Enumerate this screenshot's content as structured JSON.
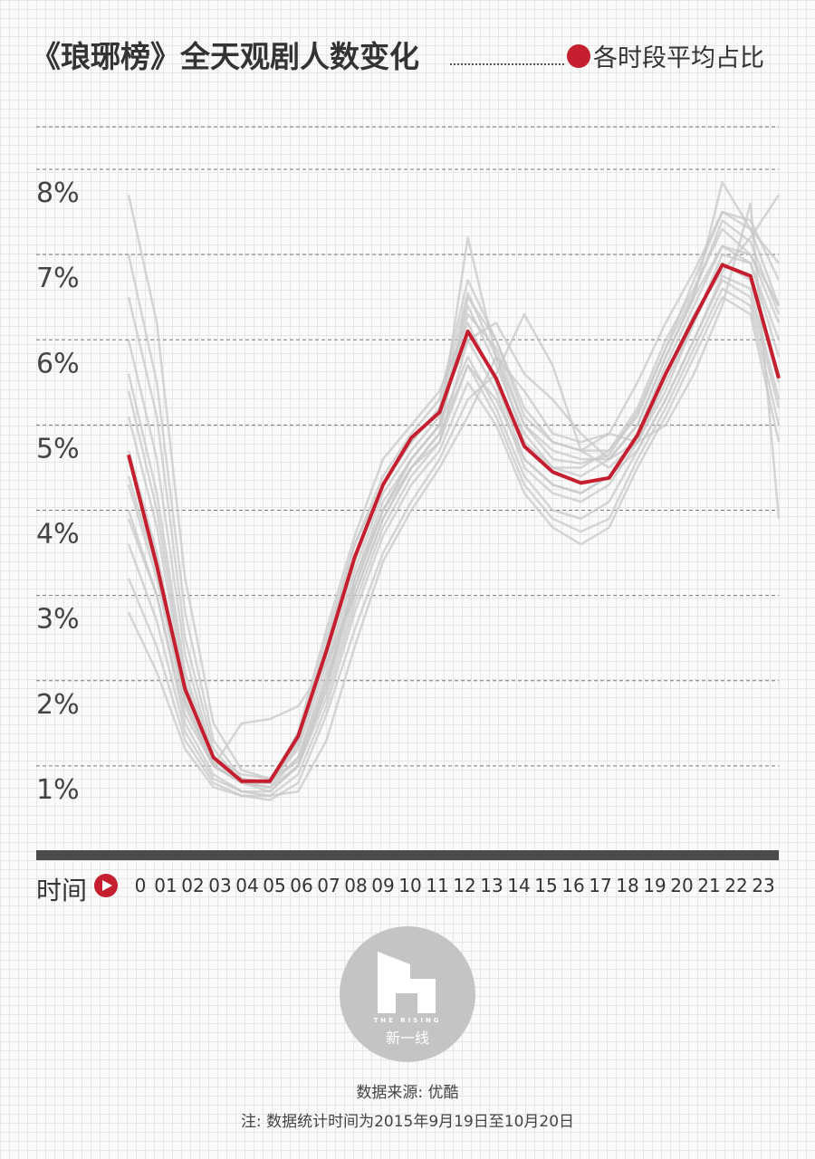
{
  "title": "《琅琊榜》全天观剧人数变化",
  "legend": {
    "label": "各时段平均占比",
    "color": "#c41e2f"
  },
  "axis_title": "时间",
  "logo": {
    "text_en": "THE RISING",
    "text_cn": "新一线"
  },
  "source": "数据来源: 优酷",
  "note": "注: 数据统计时间为2015年9月19日至10月20日",
  "colors": {
    "average": "#c41e2f",
    "daily": "#c8c8c8",
    "axis": "#4a4a4a",
    "grid": "#777777"
  },
  "chart_data": {
    "type": "line",
    "categories": [
      "0",
      "01",
      "02",
      "03",
      "04",
      "05",
      "06",
      "07",
      "08",
      "09",
      "10",
      "11",
      "12",
      "13",
      "14",
      "15",
      "16",
      "17",
      "18",
      "19",
      "20",
      "21",
      "22",
      "23"
    ],
    "ylim": [
      0,
      8.5
    ],
    "y_ticks": [
      1,
      2,
      3,
      4,
      5,
      6,
      7,
      8
    ],
    "y_tick_labels": [
      "1%",
      "2%",
      "3%",
      "4%",
      "5%",
      "6%",
      "7%",
      "8%"
    ],
    "grid": true,
    "series": [
      {
        "name": "各时段平均占比",
        "highlight": true,
        "values": [
          4.65,
          3.35,
          1.9,
          1.1,
          0.82,
          0.82,
          1.35,
          2.35,
          3.45,
          4.3,
          4.85,
          5.15,
          6.1,
          5.55,
          4.75,
          4.45,
          4.32,
          4.38,
          4.88,
          5.6,
          6.25,
          6.88,
          6.75,
          5.55
        ]
      },
      {
        "values": [
          7.7,
          6.2,
          3.2,
          1.5,
          0.95,
          0.85,
          1.05,
          1.9,
          3.2,
          4.1,
          4.6,
          5.0,
          6.3,
          5.9,
          5.0,
          4.7,
          4.6,
          4.6,
          5.0,
          5.8,
          6.5,
          7.1,
          7.0,
          6.4
        ]
      },
      {
        "values": [
          7.0,
          5.5,
          2.8,
          1.3,
          0.85,
          0.8,
          1.1,
          2.0,
          3.1,
          4.0,
          4.5,
          4.9,
          6.5,
          6.0,
          5.1,
          4.8,
          4.7,
          4.7,
          5.1,
          5.9,
          6.7,
          7.5,
          7.4,
          6.7
        ]
      },
      {
        "values": [
          6.5,
          5.1,
          2.5,
          1.2,
          0.8,
          0.75,
          1.0,
          1.8,
          2.9,
          3.8,
          4.4,
          4.8,
          6.0,
          6.2,
          5.6,
          5.3,
          4.9,
          4.6,
          4.8,
          5.4,
          6.2,
          7.0,
          6.9,
          6.0
        ]
      },
      {
        "values": [
          6.0,
          4.6,
          2.3,
          1.1,
          0.8,
          0.8,
          1.2,
          2.2,
          3.3,
          4.2,
          4.7,
          5.1,
          6.4,
          5.7,
          4.9,
          4.5,
          4.5,
          4.7,
          5.2,
          6.0,
          6.6,
          7.3,
          7.0,
          6.2
        ]
      },
      {
        "values": [
          5.6,
          4.2,
          2.1,
          1.1,
          0.9,
          0.85,
          1.3,
          2.4,
          3.6,
          4.4,
          4.9,
          5.3,
          6.7,
          6.0,
          5.2,
          4.8,
          4.7,
          4.9,
          5.5,
          6.2,
          6.8,
          7.5,
          7.3,
          6.4
        ]
      },
      {
        "values": [
          5.1,
          3.8,
          1.9,
          1.0,
          0.8,
          0.8,
          1.4,
          2.6,
          3.7,
          4.6,
          5.0,
          5.4,
          6.2,
          5.5,
          4.6,
          4.3,
          4.2,
          4.4,
          4.9,
          5.7,
          6.4,
          7.1,
          6.9,
          5.8
        ]
      },
      {
        "values": [
          4.7,
          3.5,
          1.8,
          1.0,
          0.85,
          0.8,
          1.3,
          2.5,
          3.6,
          4.3,
          4.8,
          5.2,
          6.0,
          5.4,
          4.5,
          4.2,
          4.1,
          4.3,
          4.8,
          5.5,
          6.2,
          6.9,
          6.7,
          5.5
        ]
      },
      {
        "values": [
          4.3,
          3.2,
          1.7,
          1.0,
          0.8,
          0.75,
          1.1,
          2.1,
          3.2,
          4.0,
          4.6,
          5.0,
          5.8,
          5.2,
          4.4,
          4.0,
          3.9,
          4.1,
          4.7,
          5.3,
          6.0,
          6.7,
          6.5,
          5.2
        ]
      },
      {
        "values": [
          4.0,
          3.0,
          1.5,
          0.9,
          0.7,
          0.7,
          1.0,
          1.9,
          3.0,
          3.9,
          4.5,
          4.9,
          5.7,
          5.1,
          4.3,
          3.9,
          3.75,
          3.9,
          4.6,
          5.2,
          5.9,
          6.6,
          6.4,
          5.0
        ]
      },
      {
        "values": [
          3.6,
          2.7,
          1.4,
          0.85,
          0.7,
          0.65,
          0.9,
          1.7,
          2.8,
          3.7,
          4.3,
          4.7,
          5.5,
          5.0,
          4.2,
          3.8,
          3.6,
          3.8,
          4.5,
          5.1,
          5.8,
          6.5,
          6.3,
          4.8
        ]
      },
      {
        "values": [
          3.2,
          2.4,
          1.3,
          0.8,
          0.65,
          0.6,
          0.8,
          1.6,
          2.6,
          3.5,
          4.1,
          4.6,
          5.3,
          5.6,
          6.3,
          5.7,
          4.7,
          4.5,
          4.8,
          5.0,
          5.6,
          6.4,
          7.6,
          3.9
        ]
      },
      {
        "values": [
          2.8,
          2.1,
          1.2,
          0.75,
          0.65,
          0.65,
          0.7,
          1.3,
          2.4,
          3.4,
          4.0,
          4.5,
          5.1,
          5.8,
          5.4,
          4.9,
          4.8,
          4.9,
          4.8,
          5.6,
          6.3,
          6.8,
          7.2,
          7.7
        ]
      },
      {
        "values": [
          3.9,
          3.0,
          1.6,
          1.0,
          0.8,
          0.7,
          1.0,
          2.0,
          3.1,
          4.0,
          4.6,
          5.0,
          7.2,
          5.8,
          4.8,
          4.5,
          4.4,
          4.6,
          5.0,
          5.8,
          6.5,
          7.85,
          7.3,
          6.9
        ]
      },
      {
        "values": [
          5.4,
          4.0,
          2.0,
          1.05,
          0.85,
          0.8,
          1.25,
          2.3,
          3.4,
          4.3,
          4.8,
          5.2,
          6.55,
          5.8,
          5.0,
          4.6,
          4.55,
          4.65,
          5.15,
          5.9,
          6.55,
          7.4,
          7.15,
          6.3
        ]
      },
      {
        "values": [
          4.4,
          3.3,
          1.75,
          1.0,
          1.5,
          1.55,
          1.7,
          2.2,
          3.0,
          3.9,
          4.5,
          4.8,
          5.7,
          5.3,
          4.6,
          4.3,
          4.2,
          4.4,
          4.7,
          5.3,
          6.0,
          6.75,
          6.6,
          5.3
        ]
      }
    ]
  }
}
